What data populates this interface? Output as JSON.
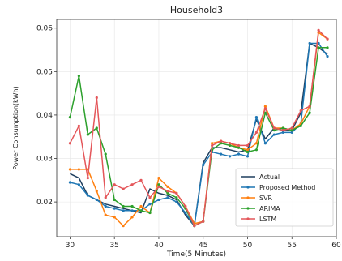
{
  "chart_data": {
    "type": "line",
    "title": "Household3",
    "xlabel": "Time(5 Minutes)",
    "ylabel": "Power Consumption(kWh)",
    "xlim": [
      28.5,
      60
    ],
    "ylim": [
      0.012,
      0.062
    ],
    "xticks": [
      30,
      35,
      40,
      45,
      50,
      55,
      60
    ],
    "yticks": [
      0.02,
      0.03,
      0.04,
      0.05,
      0.06
    ],
    "xtick_labels": [
      "30",
      "35",
      "40",
      "45",
      "50",
      "55",
      "60"
    ],
    "ytick_labels": [
      "0.02",
      "0.03",
      "0.04",
      "0.05",
      "0.06"
    ],
    "grid": true,
    "legend_position": "lower-right",
    "series": [
      {
        "name": "Actual",
        "color": "#1f3f5f",
        "marker": false,
        "x": [
          30,
          31,
          32,
          33,
          34,
          35,
          36,
          37,
          38,
          39,
          40,
          41,
          42,
          43,
          44,
          45,
          46,
          47,
          48,
          49,
          50,
          51,
          52,
          53,
          54,
          55,
          56,
          57,
          58,
          59
        ],
        "y": [
          0.0265,
          0.0255,
          0.0215,
          0.0205,
          0.0195,
          0.019,
          0.0185,
          0.018,
          0.0175,
          0.023,
          0.022,
          0.0215,
          0.0205,
          0.017,
          0.0145,
          0.029,
          0.0325,
          0.0325,
          0.032,
          0.0315,
          0.032,
          0.039,
          0.0345,
          0.037,
          0.0365,
          0.0365,
          0.0405,
          0.0565,
          0.0555,
          0.054
        ]
      },
      {
        "name": "Proposed Method",
        "color": "#1f77b4",
        "marker": true,
        "x": [
          30,
          31,
          32,
          33,
          34,
          35,
          36,
          37,
          38,
          39,
          40,
          41,
          42,
          43,
          44,
          45,
          46,
          47,
          48,
          49,
          50,
          51,
          52,
          53,
          54,
          55,
          56,
          57,
          58,
          59
        ],
        "y": [
          0.0245,
          0.024,
          0.0215,
          0.0205,
          0.019,
          0.0185,
          0.018,
          0.018,
          0.018,
          0.0195,
          0.0205,
          0.021,
          0.02,
          0.0175,
          0.0145,
          0.0285,
          0.0315,
          0.031,
          0.0305,
          0.031,
          0.0305,
          0.0395,
          0.0335,
          0.0355,
          0.036,
          0.036,
          0.038,
          0.0565,
          0.0565,
          0.0535
        ]
      },
      {
        "name": "SVR",
        "color": "#ff7f0e",
        "marker": true,
        "x": [
          30,
          31,
          32,
          33,
          34,
          35,
          36,
          37,
          38,
          39,
          40,
          41,
          42,
          43,
          44,
          45,
          46,
          47,
          48,
          49,
          50,
          51,
          52,
          53,
          54,
          55,
          56,
          57,
          58,
          59
        ],
        "y": [
          0.0275,
          0.0275,
          0.0275,
          0.0225,
          0.017,
          0.0165,
          0.0145,
          0.0165,
          0.019,
          0.0175,
          0.0255,
          0.0235,
          0.022,
          0.019,
          0.015,
          0.0155,
          0.0335,
          0.034,
          0.0335,
          0.0325,
          0.032,
          0.0335,
          0.042,
          0.037,
          0.037,
          0.0365,
          0.038,
          0.042,
          0.059,
          0.0575
        ]
      },
      {
        "name": "ARIMA",
        "color": "#2ca02c",
        "marker": true,
        "x": [
          30,
          31,
          32,
          33,
          34,
          35,
          36,
          37,
          38,
          39,
          40,
          41,
          42,
          43,
          44,
          45,
          46,
          47,
          48,
          49,
          50,
          51,
          52,
          53,
          54,
          55,
          56,
          57,
          58,
          59
        ],
        "y": [
          0.0395,
          0.049,
          0.0355,
          0.037,
          0.031,
          0.0205,
          0.019,
          0.019,
          0.018,
          0.0175,
          0.024,
          0.022,
          0.021,
          0.0185,
          0.0145,
          0.0155,
          0.032,
          0.0335,
          0.033,
          0.0325,
          0.0315,
          0.032,
          0.0405,
          0.0365,
          0.037,
          0.0365,
          0.0375,
          0.0405,
          0.0555,
          0.0555
        ]
      },
      {
        "name": "LSTM",
        "color": "#e4565a",
        "marker": true,
        "x": [
          30,
          31,
          32,
          33,
          34,
          35,
          36,
          37,
          38,
          39,
          40,
          41,
          42,
          43,
          44,
          45,
          46,
          47,
          48,
          49,
          50,
          51,
          52,
          53,
          54,
          55,
          56,
          57,
          58,
          59
        ],
        "y": [
          0.0335,
          0.0375,
          0.0255,
          0.044,
          0.021,
          0.024,
          0.023,
          0.024,
          0.025,
          0.021,
          0.0235,
          0.0225,
          0.022,
          0.019,
          0.0145,
          0.0155,
          0.033,
          0.034,
          0.0335,
          0.033,
          0.033,
          0.036,
          0.0415,
          0.037,
          0.0365,
          0.037,
          0.041,
          0.042,
          0.0595,
          0.0575
        ]
      }
    ]
  }
}
